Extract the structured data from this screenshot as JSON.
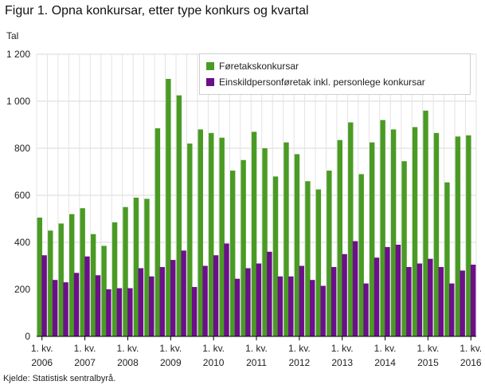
{
  "title": "Figur 1. Opna konkursar, etter type konkurs og kvartal",
  "source": "Kjelde: Statistisk sentralbyrå.",
  "chart_data": {
    "type": "bar",
    "ylabel": "Tal",
    "ylim": [
      0,
      1200
    ],
    "yticks": [
      0,
      200,
      400,
      600,
      800,
      1000,
      1200
    ],
    "ytick_labels": [
      "0",
      "200",
      "400",
      "600",
      "800",
      "1 000",
      "1 200"
    ],
    "grid": true,
    "legend_position": "top-right",
    "x_labels": [
      {
        "q": "1. kv.",
        "year": "2006"
      },
      {
        "q": "1. kv.",
        "year": "2007"
      },
      {
        "q": "1. kv.",
        "year": "2008"
      },
      {
        "q": "1. kv.",
        "year": "2009"
      },
      {
        "q": "1. kv.",
        "year": "2010"
      },
      {
        "q": "1. kv.",
        "year": "2011"
      },
      {
        "q": "1. kv.",
        "year": "2012"
      },
      {
        "q": "1. kv.",
        "year": "2013"
      },
      {
        "q": "1. kv.",
        "year": "2014"
      },
      {
        "q": "1. kv.",
        "year": "2015"
      },
      {
        "q": "1. kv.",
        "year": "2016"
      }
    ],
    "series": [
      {
        "name": "Føretakskonkursar",
        "color": "#4a9b24",
        "values": [
          505,
          450,
          480,
          520,
          545,
          435,
          385,
          485,
          550,
          590,
          585,
          885,
          1095,
          1025,
          820,
          880,
          865,
          845,
          705,
          750,
          870,
          800,
          680,
          825,
          775,
          660,
          625,
          705,
          835,
          910,
          690,
          825,
          920,
          880,
          745,
          890,
          960,
          865,
          655,
          850,
          855
        ]
      },
      {
        "name": "Einskildpersonføretak inkl. personlege konkursar",
        "color": "#6b0f8a",
        "values": [
          345,
          240,
          230,
          270,
          340,
          260,
          200,
          205,
          205,
          290,
          255,
          295,
          325,
          365,
          210,
          300,
          345,
          395,
          245,
          290,
          310,
          360,
          255,
          255,
          300,
          240,
          215,
          295,
          350,
          405,
          225,
          335,
          380,
          390,
          295,
          310,
          330,
          295,
          225,
          280,
          305
        ]
      }
    ]
  }
}
